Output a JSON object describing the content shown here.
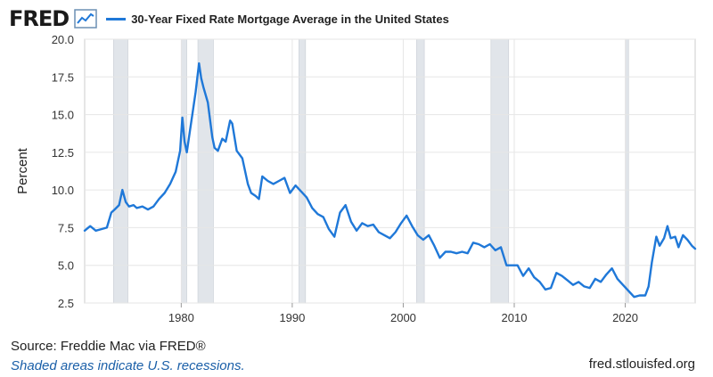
{
  "brand": {
    "logo": "FRED",
    "logo_icon": "chart-line-icon"
  },
  "colors": {
    "line": "#1f78d8",
    "recession": "#e1e5ea",
    "grid": "#e6e6e6",
    "axis_text": "#333333"
  },
  "footer": {
    "source": "Source: Freddie Mac via FRED®",
    "recessions_note": "Shaded areas indicate U.S. recessions.",
    "site": "fred.stlouisfed.org"
  },
  "chart_data": {
    "type": "line",
    "title": "",
    "xlabel": "",
    "ylabel": "Percent",
    "xlim": [
      1971.3,
      2026.3
    ],
    "ylim": [
      2.5,
      20.0
    ],
    "yticks": [
      2.5,
      5.0,
      7.5,
      10.0,
      12.5,
      15.0,
      17.5,
      20.0
    ],
    "ytick_labels": [
      "2.5",
      "5.0",
      "7.5",
      "10.0",
      "12.5",
      "15.0",
      "17.5",
      "20.0"
    ],
    "xticks": [
      1980,
      1990,
      2000,
      2010,
      2020
    ],
    "xtick_labels": [
      "1980",
      "1990",
      "2000",
      "2010",
      "2020"
    ],
    "grid": true,
    "legend": "top-left",
    "recessions": [
      [
        1973.9,
        1975.2
      ],
      [
        1980.0,
        1980.5
      ],
      [
        1981.5,
        1982.9
      ],
      [
        1990.6,
        1991.2
      ],
      [
        2001.2,
        2001.9
      ],
      [
        2007.9,
        2009.5
      ],
      [
        2020.1,
        2020.3
      ]
    ],
    "series": [
      {
        "name": "30-Year Fixed Rate Mortgage Average in the United States",
        "x": [
          1971.3,
          1971.8,
          1972.3,
          1972.8,
          1973.3,
          1973.7,
          1974.0,
          1974.4,
          1974.7,
          1975.0,
          1975.3,
          1975.7,
          1976.0,
          1976.5,
          1977.0,
          1977.5,
          1978.0,
          1978.5,
          1979.0,
          1979.5,
          1979.9,
          1980.1,
          1980.3,
          1980.5,
          1980.8,
          1981.0,
          1981.3,
          1981.6,
          1981.8,
          1982.0,
          1982.4,
          1982.8,
          1983.0,
          1983.3,
          1983.7,
          1984.0,
          1984.4,
          1984.6,
          1985.0,
          1985.5,
          1986.0,
          1986.3,
          1986.7,
          1987.0,
          1987.3,
          1987.8,
          1988.3,
          1988.8,
          1989.3,
          1989.8,
          1990.3,
          1990.8,
          1991.3,
          1991.8,
          1992.3,
          1992.8,
          1993.3,
          1993.8,
          1994.3,
          1994.8,
          1995.3,
          1995.8,
          1996.3,
          1996.8,
          1997.3,
          1997.8,
          1998.3,
          1998.8,
          1999.3,
          1999.8,
          2000.3,
          2000.8,
          2001.3,
          2001.8,
          2002.3,
          2002.8,
          2003.3,
          2003.8,
          2004.3,
          2004.8,
          2005.3,
          2005.8,
          2006.3,
          2006.8,
          2007.3,
          2007.8,
          2008.3,
          2008.8,
          2009.3,
          2009.8,
          2010.3,
          2010.8,
          2011.3,
          2011.8,
          2012.3,
          2012.8,
          2013.3,
          2013.8,
          2014.3,
          2014.8,
          2015.3,
          2015.8,
          2016.3,
          2016.8,
          2017.3,
          2017.8,
          2018.3,
          2018.8,
          2019.3,
          2019.8,
          2020.3,
          2020.8,
          2021.3,
          2021.8,
          2022.1,
          2022.4,
          2022.8,
          2023.1,
          2023.5,
          2023.8,
          2024.1,
          2024.5,
          2024.8,
          2025.2,
          2025.6,
          2026.0,
          2026.3
        ],
        "values": [
          7.3,
          7.6,
          7.3,
          7.4,
          7.5,
          8.5,
          8.7,
          9.0,
          10.0,
          9.2,
          8.9,
          9.0,
          8.8,
          8.9,
          8.7,
          8.9,
          9.4,
          9.8,
          10.4,
          11.2,
          12.6,
          14.8,
          13.2,
          12.5,
          14.0,
          15.0,
          16.5,
          18.4,
          17.4,
          16.8,
          15.8,
          13.5,
          12.8,
          12.6,
          13.4,
          13.2,
          14.6,
          14.4,
          12.6,
          12.1,
          10.4,
          9.8,
          9.6,
          9.4,
          10.9,
          10.6,
          10.4,
          10.6,
          10.8,
          9.8,
          10.3,
          9.9,
          9.5,
          8.8,
          8.4,
          8.2,
          7.4,
          6.9,
          8.5,
          9.0,
          7.9,
          7.3,
          7.8,
          7.6,
          7.7,
          7.2,
          7.0,
          6.8,
          7.2,
          7.8,
          8.3,
          7.6,
          7.0,
          6.7,
          7.0,
          6.3,
          5.5,
          5.9,
          5.9,
          5.8,
          5.9,
          5.8,
          6.5,
          6.4,
          6.2,
          6.4,
          6.0,
          6.2,
          5.0,
          5.0,
          5.0,
          4.3,
          4.8,
          4.2,
          3.9,
          3.4,
          3.5,
          4.5,
          4.3,
          4.0,
          3.7,
          3.9,
          3.6,
          3.5,
          4.1,
          3.9,
          4.4,
          4.8,
          4.1,
          3.7,
          3.3,
          2.9,
          3.0,
          3.0,
          3.6,
          5.2,
          6.9,
          6.3,
          6.8,
          7.6,
          6.8,
          6.9,
          6.2,
          7.0,
          6.7,
          6.3,
          6.1
        ]
      }
    ]
  }
}
